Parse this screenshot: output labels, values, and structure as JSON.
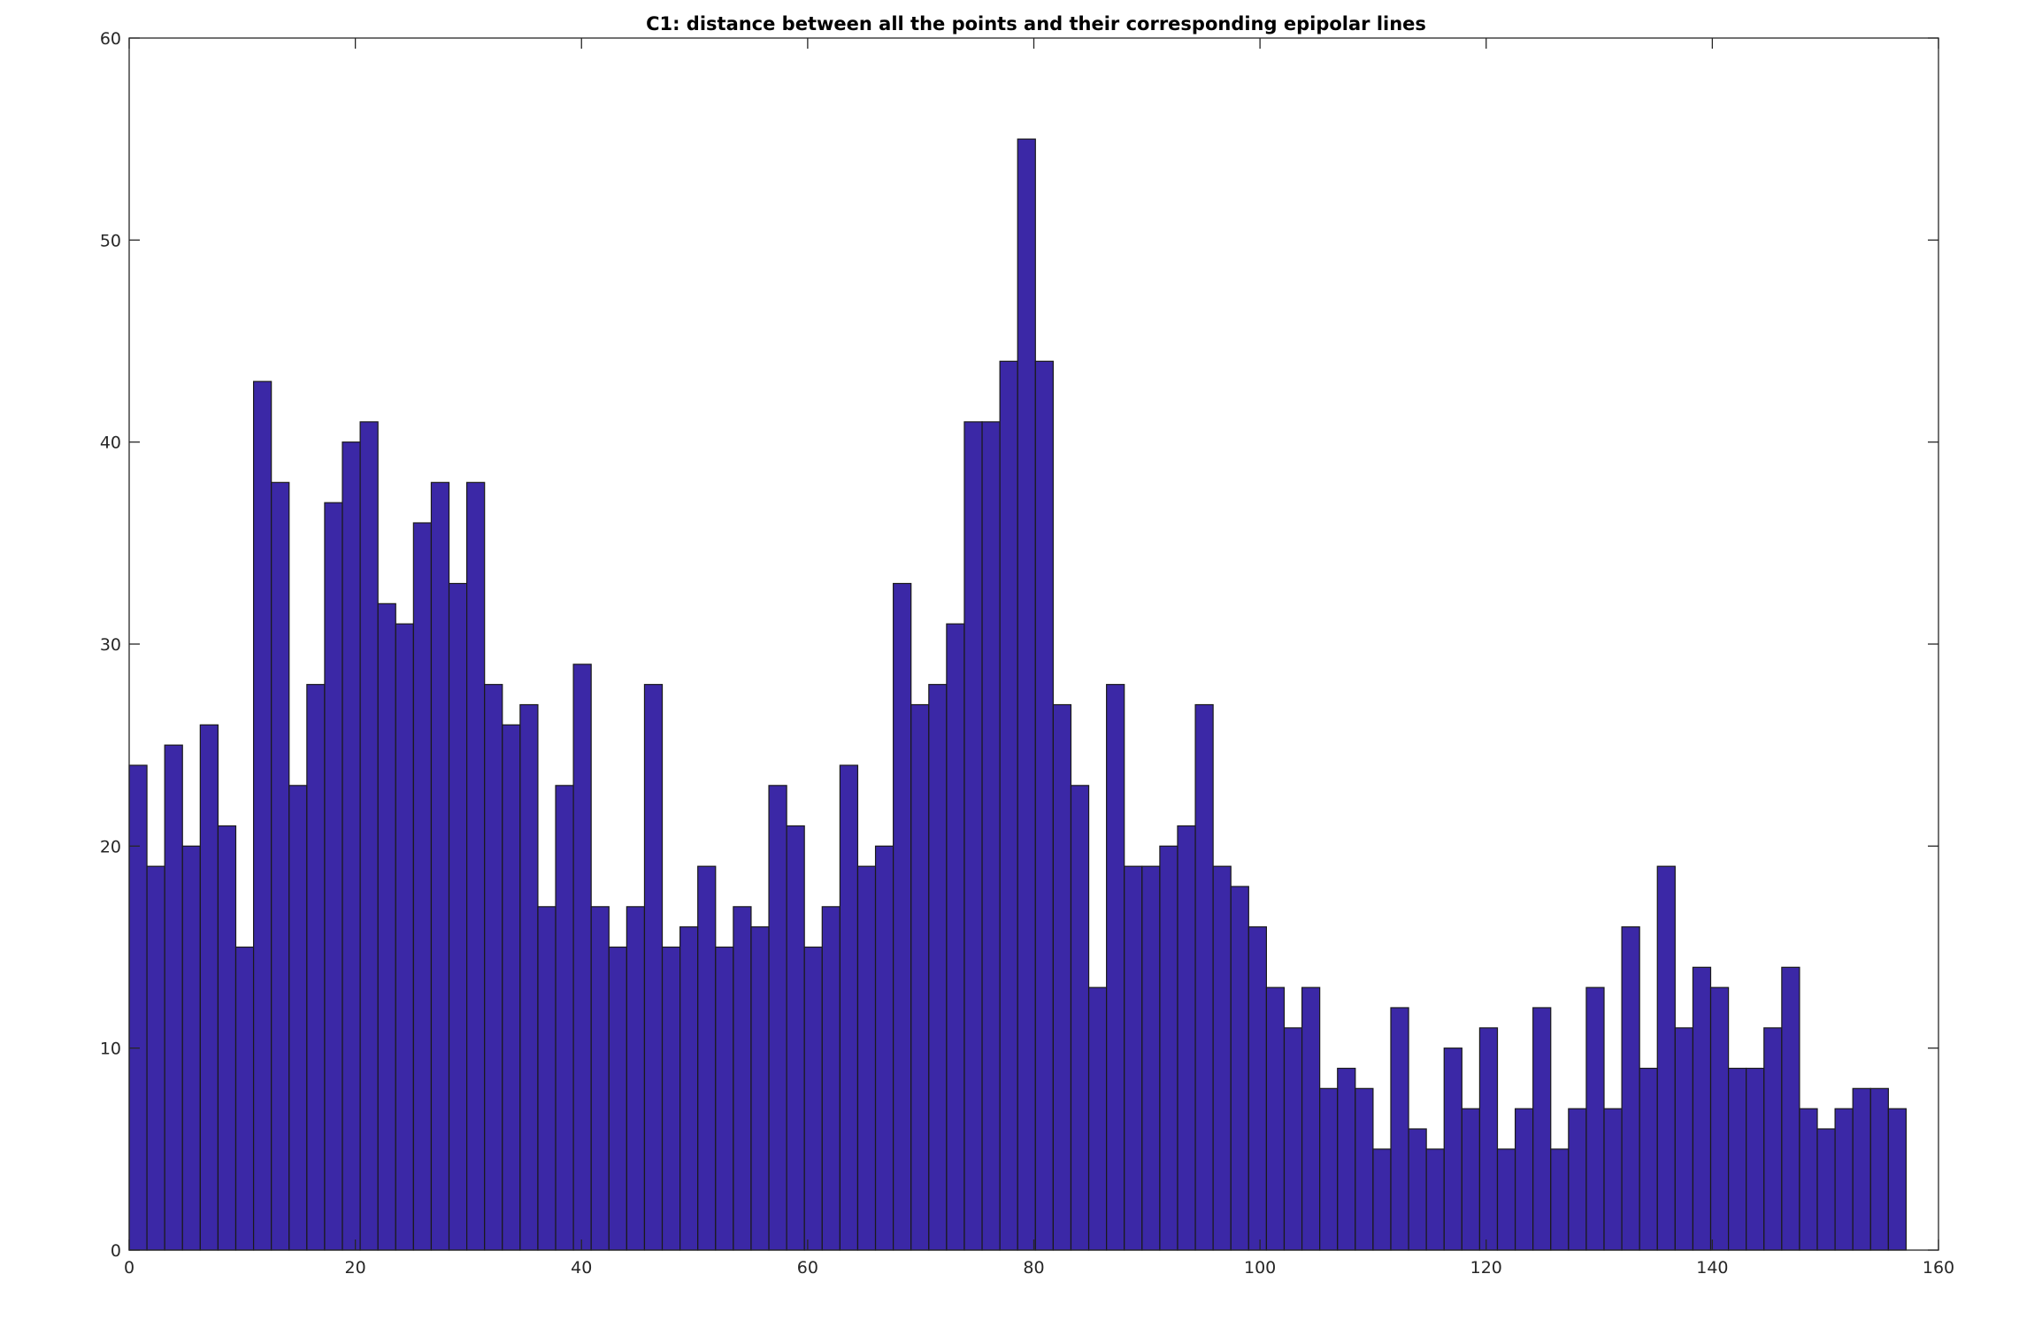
{
  "chart_data": {
    "type": "bar",
    "title": "C1: distance between all the points and their corresponding epipolar lines",
    "xlabel": "",
    "ylabel": "",
    "xlim": [
      0,
      160
    ],
    "ylim": [
      0,
      60
    ],
    "xticks": [
      0,
      20,
      40,
      60,
      80,
      100,
      120,
      140,
      160
    ],
    "yticks": [
      0,
      10,
      20,
      30,
      40,
      50,
      60
    ],
    "xtick_labels": [
      "0",
      "20",
      "40",
      "60",
      "80",
      "100",
      "120",
      "140",
      "160"
    ],
    "ytick_labels": [
      "0",
      "10",
      "20",
      "30",
      "40",
      "50",
      "60"
    ],
    "bin_start": 0,
    "bin_width": 1.5714,
    "values": [
      24,
      19,
      25,
      20,
      26,
      21,
      15,
      43,
      38,
      23,
      28,
      37,
      40,
      41,
      32,
      31,
      36,
      38,
      33,
      38,
      28,
      26,
      27,
      17,
      23,
      29,
      17,
      15,
      17,
      28,
      15,
      16,
      19,
      15,
      17,
      16,
      23,
      21,
      15,
      17,
      24,
      19,
      20,
      33,
      27,
      28,
      31,
      41,
      41,
      44,
      55,
      44,
      27,
      23,
      13,
      28,
      19,
      19,
      20,
      21,
      27,
      19,
      18,
      16,
      13,
      11,
      13,
      8,
      9,
      8,
      5,
      12,
      6,
      5,
      10,
      7,
      11,
      5,
      7,
      12,
      5,
      7,
      13,
      7,
      16,
      9,
      19,
      11,
      14,
      13,
      9,
      9,
      11,
      14,
      7,
      6,
      7,
      8,
      8,
      7
    ],
    "grid": false,
    "bar_color": "#3b28a6",
    "edge_color": "#1a1a1a"
  }
}
